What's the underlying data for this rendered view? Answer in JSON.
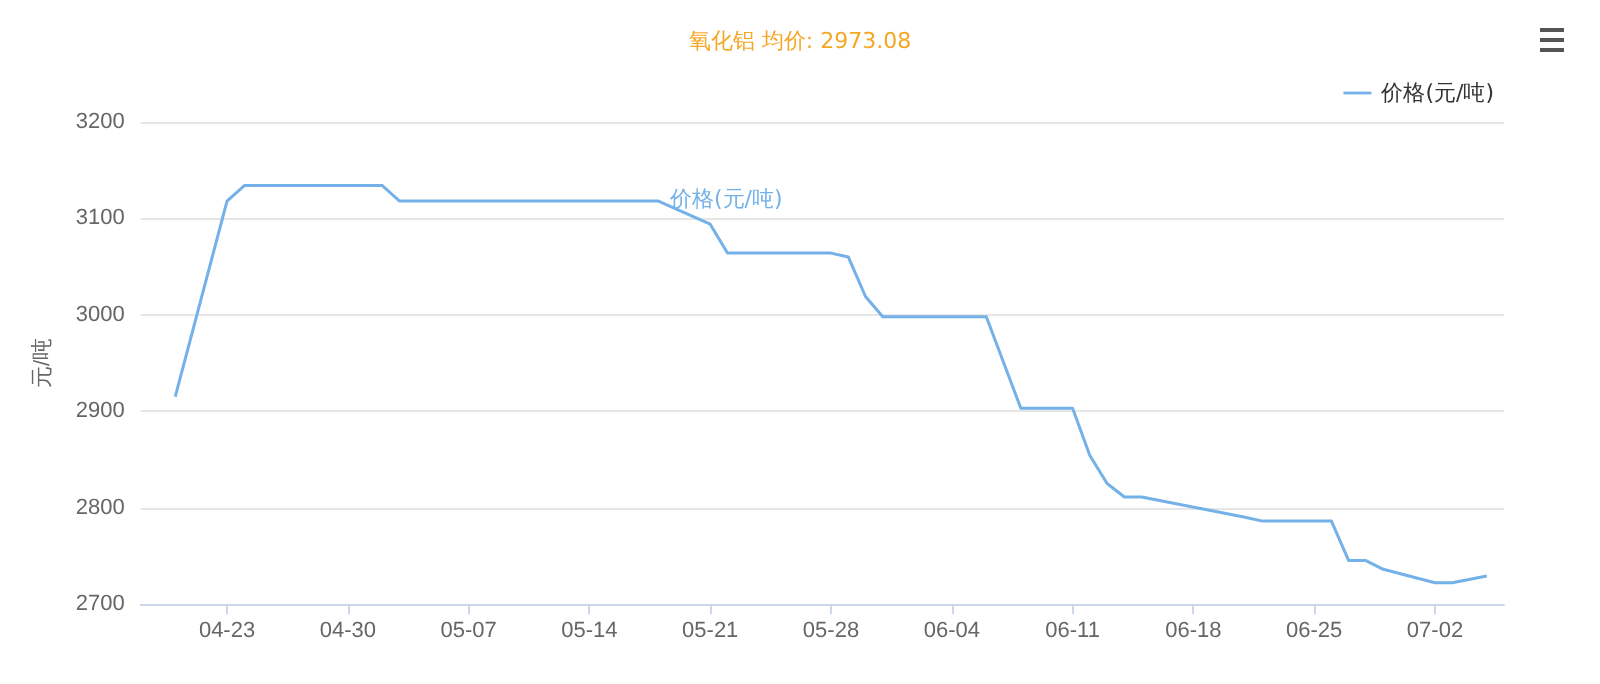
{
  "chart_data": {
    "type": "line",
    "title": "氧化铝 均价: 2973.08",
    "ylabel": "元/吨",
    "x": [
      "--04-20",
      "--04-23",
      "--04-24",
      "--05-02",
      "--05-03",
      "--05-18",
      "--05-21",
      "--05-22",
      "--05-28",
      "--05-29",
      "--05-30",
      "--05-31",
      "--06-06",
      "--06-08",
      "--06-11",
      "--06-12",
      "--06-13",
      "--06-14",
      "--06-15",
      "--06-21",
      "--06-22",
      "--06-26",
      "--06-27",
      "--06-28",
      "--06-29",
      "--07-02",
      "--07-03",
      "--07-05"
    ],
    "series": [
      {
        "name": "价格(元/吨)",
        "color": "#73b1e8",
        "values": [
          2915,
          3118,
          3134,
          3134,
          3118,
          3118,
          3094,
          3064,
          3064,
          3060,
          3019,
          2998,
          2998,
          2903,
          2903,
          2854,
          2825,
          2811,
          2811,
          2790,
          2786,
          2786,
          2745,
          2745,
          2736,
          2722,
          2722,
          2729
        ]
      }
    ],
    "xlim": [
      "--04-18",
      "--07-06"
    ],
    "xticks": [
      {
        "value": "--04-23",
        "label": "04-23"
      },
      {
        "value": "--04-30",
        "label": "04-30"
      },
      {
        "value": "--05-07",
        "label": "05-07"
      },
      {
        "value": "--05-14",
        "label": "05-14"
      },
      {
        "value": "--05-21",
        "label": "05-21"
      },
      {
        "value": "--05-28",
        "label": "05-28"
      },
      {
        "value": "--06-04",
        "label": "06-04"
      },
      {
        "value": "--06-11",
        "label": "06-11"
      },
      {
        "value": "--06-18",
        "label": "06-18"
      },
      {
        "value": "--06-25",
        "label": "06-25"
      },
      {
        "value": "--07-02",
        "label": "07-02"
      }
    ],
    "ylim": [
      2700,
      3200
    ],
    "yticks": [
      2700,
      2800,
      2900,
      3000,
      3100,
      3200
    ],
    "annotations": [
      "价格(元/吨)"
    ],
    "grid": "y",
    "legend": "top right",
    "marker": "none",
    "line_style": "solid"
  }
}
